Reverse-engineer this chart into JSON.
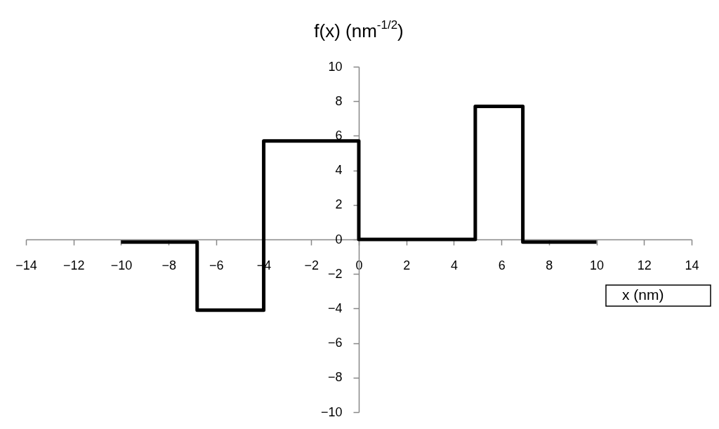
{
  "chart_data": {
    "type": "step",
    "ylabel": "f(x) (nm$^{-1/2}$)",
    "xlabel": "x (nm)",
    "x": [
      -10,
      -6.8,
      -4,
      0,
      4.9,
      6.9,
      10
    ],
    "series": [
      {
        "color": "#000000",
        "values": [
          -0.15,
          -4.1,
          5.7,
          0,
          7.7,
          -0.15,
          -0.15
        ]
      }
    ],
    "xlim": [
      -14,
      14
    ],
    "ylim": [
      -10,
      10
    ],
    "xticks": [
      -14,
      -12,
      -10,
      -8,
      -6,
      -4,
      -2,
      0,
      2,
      4,
      6,
      8,
      10,
      12,
      14
    ],
    "yticks": [
      -10,
      -8,
      -6,
      -4,
      -2,
      0,
      2,
      4,
      6,
      8,
      10
    ],
    "grid": false,
    "legend": false,
    "marker": "none",
    "line_style": "solid"
  }
}
